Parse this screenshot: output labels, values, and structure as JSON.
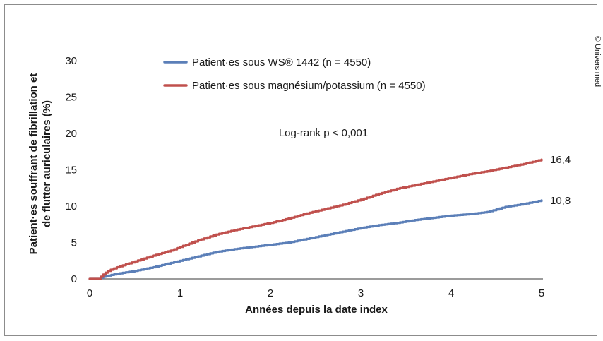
{
  "chart_data": {
    "type": "line",
    "xlabel": "Années depuis la date index",
    "ylabel_lines": [
      "Patient·es souffrant de fibrillation et",
      "de flutter auriculaires (%)"
    ],
    "xlim": [
      0,
      5
    ],
    "ylim": [
      0,
      30
    ],
    "xticks": [
      "0",
      "1",
      "2",
      "3",
      "4",
      "5"
    ],
    "yticks": [
      "0",
      "5",
      "10",
      "15",
      "20",
      "25",
      "30"
    ],
    "grid": false,
    "legend_position": "top-center",
    "annotation": "Log-rank p < 0,001",
    "series": [
      {
        "name": "Patient·es sous WS® 1442 (n = 4550)",
        "color": "#5b7fb8",
        "end_label": "10,8",
        "x": [
          0,
          0.1,
          0.15,
          0.3,
          0.5,
          0.7,
          0.9,
          1.0,
          1.2,
          1.4,
          1.6,
          1.8,
          2.0,
          2.2,
          2.4,
          2.6,
          2.8,
          3.0,
          3.2,
          3.4,
          3.6,
          3.8,
          4.0,
          4.2,
          4.4,
          4.6,
          4.8,
          5.0
        ],
        "y": [
          0,
          0,
          0.3,
          0.7,
          1.1,
          1.6,
          2.2,
          2.5,
          3.1,
          3.7,
          4.1,
          4.4,
          4.7,
          5.0,
          5.5,
          6.0,
          6.5,
          7.0,
          7.4,
          7.7,
          8.1,
          8.4,
          8.7,
          8.9,
          9.2,
          9.9,
          10.3,
          10.8
        ]
      },
      {
        "name": "Patient·es sous magnésium/potassium (n = 4550)",
        "color": "#c0504d",
        "end_label": "16,4",
        "x": [
          0,
          0.1,
          0.15,
          0.2,
          0.3,
          0.5,
          0.7,
          0.9,
          1.0,
          1.2,
          1.4,
          1.6,
          1.8,
          2.0,
          2.2,
          2.4,
          2.6,
          2.8,
          3.0,
          3.2,
          3.4,
          3.6,
          3.8,
          4.0,
          4.2,
          4.4,
          4.6,
          4.8,
          5.0
        ],
        "y": [
          0,
          0,
          0.6,
          1.1,
          1.6,
          2.4,
          3.2,
          3.9,
          4.4,
          5.3,
          6.1,
          6.7,
          7.2,
          7.7,
          8.3,
          9.0,
          9.6,
          10.2,
          10.9,
          11.7,
          12.4,
          12.9,
          13.4,
          13.9,
          14.4,
          14.8,
          15.3,
          15.8,
          16.4
        ]
      }
    ]
  },
  "copyright": "© Universimed"
}
